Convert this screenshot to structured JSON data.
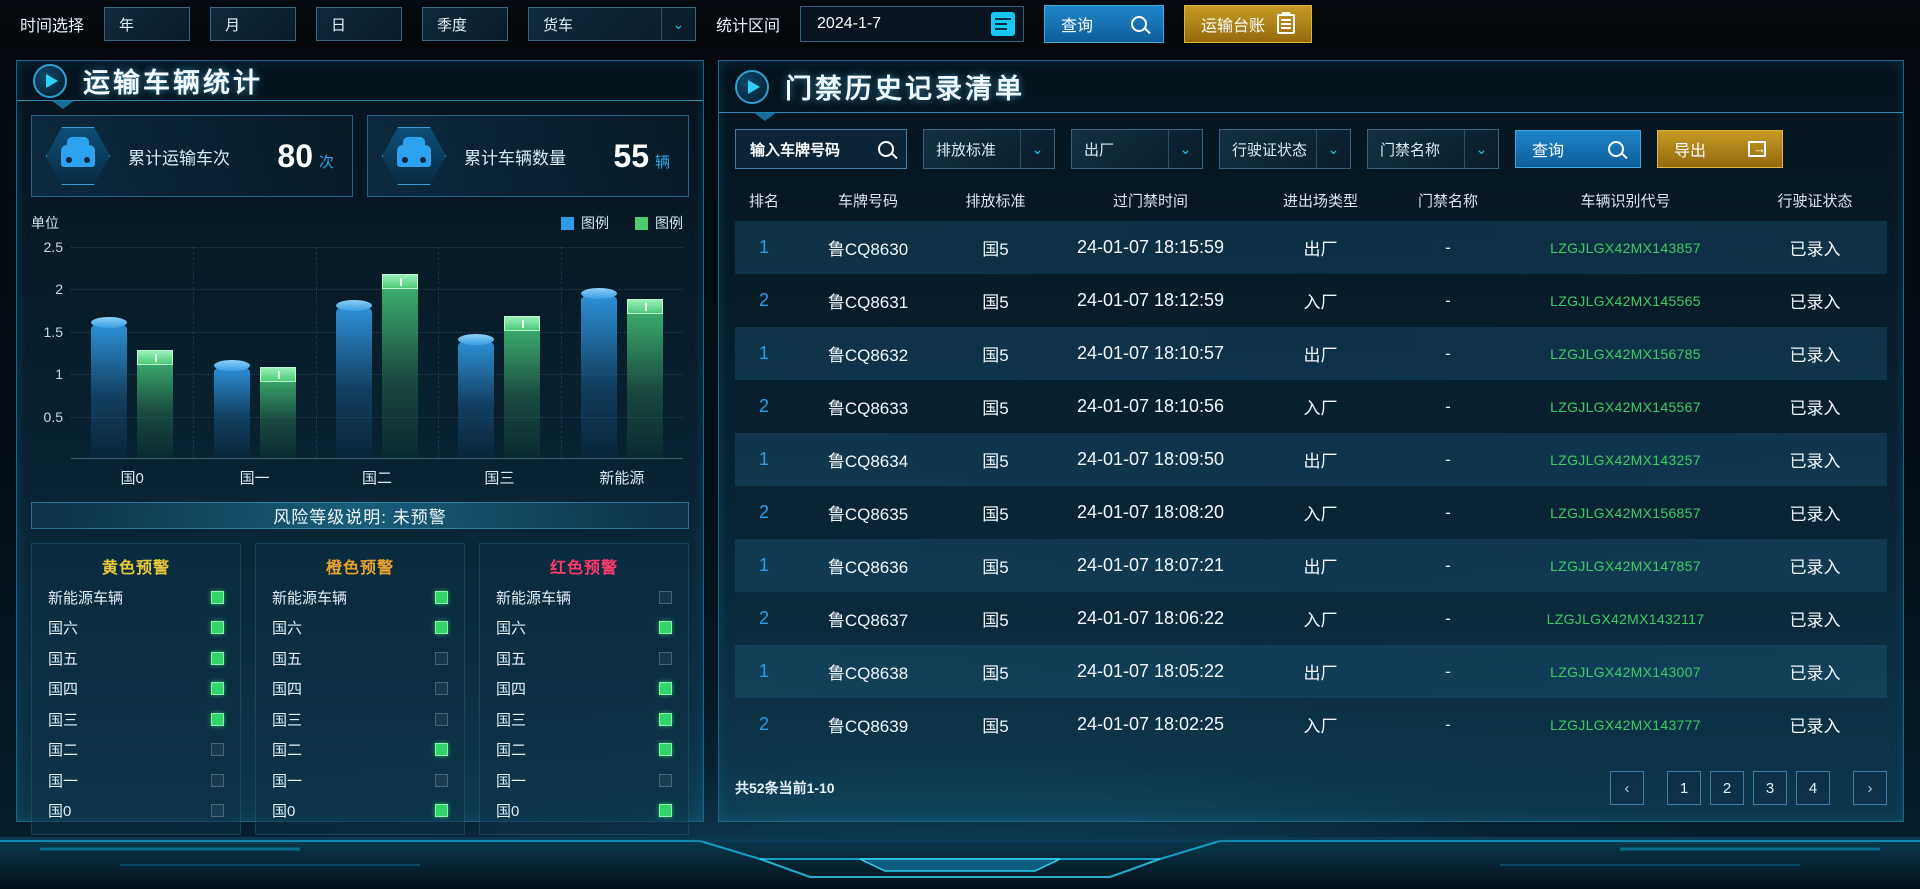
{
  "topbar": {
    "time_label": "时间选择",
    "time_buttons": [
      "年",
      "月",
      "日",
      "季度"
    ],
    "vehicle_select": "货车",
    "range_label": "统计区间",
    "date_value": "2024-1-7",
    "query_label": "查询",
    "ledger_label": "运输台账"
  },
  "left_panel": {
    "title": "运输车辆统计",
    "stats": [
      {
        "label": "累计运输车次",
        "value": "80",
        "unit": "次"
      },
      {
        "label": "累计车辆数量",
        "value": "55",
        "unit": "辆"
      }
    ],
    "risk_note": "风险等级说明: 未预警",
    "warning_columns": [
      {
        "title": "黄色预警",
        "color": "#e8c93a",
        "items": [
          {
            "label": "新能源车辆",
            "on": true
          },
          {
            "label": "国六",
            "on": true
          },
          {
            "label": "国五",
            "on": true
          },
          {
            "label": "国四",
            "on": true
          },
          {
            "label": "国三",
            "on": true
          },
          {
            "label": "国二",
            "on": false
          },
          {
            "label": "国一",
            "on": false
          },
          {
            "label": "国0",
            "on": false
          }
        ]
      },
      {
        "title": "橙色预警",
        "color": "#e8a32e",
        "items": [
          {
            "label": "新能源车辆",
            "on": true
          },
          {
            "label": "国六",
            "on": true
          },
          {
            "label": "国五",
            "on": false
          },
          {
            "label": "国四",
            "on": false
          },
          {
            "label": "国三",
            "on": false
          },
          {
            "label": "国二",
            "on": true
          },
          {
            "label": "国一",
            "on": false
          },
          {
            "label": "国0",
            "on": true
          }
        ]
      },
      {
        "title": "红色预警",
        "color": "#ff3b6e",
        "items": [
          {
            "label": "新能源车辆",
            "on": false
          },
          {
            "label": "国六",
            "on": true
          },
          {
            "label": "国五",
            "on": false
          },
          {
            "label": "国四",
            "on": true
          },
          {
            "label": "国三",
            "on": true
          },
          {
            "label": "国二",
            "on": true
          },
          {
            "label": "国一",
            "on": false
          },
          {
            "label": "国0",
            "on": true
          }
        ]
      }
    ]
  },
  "chart_data": {
    "type": "bar",
    "title": "",
    "ylabel": "单位",
    "categories": [
      "国0",
      "国一",
      "国二",
      "国三",
      "新能源"
    ],
    "series": [
      {
        "name": "图例",
        "color": "#2e9be6",
        "values": [
          1.6,
          1.1,
          1.8,
          1.4,
          1.95
        ]
      },
      {
        "name": "图例",
        "color": "#4ecb71",
        "values": [
          1.2,
          1.0,
          2.1,
          1.6,
          1.8
        ]
      }
    ],
    "ylim": [
      0,
      2.5
    ],
    "yticks": [
      0.5,
      1,
      1.5,
      2,
      2.5
    ],
    "grid": true,
    "legend_position": "top-right"
  },
  "right_panel": {
    "title": "门禁历史记录清单",
    "filters": {
      "plate_placeholder": "输入车牌号码",
      "selects": [
        "排放标准",
        "出厂",
        "行驶证状态",
        "门禁名称"
      ],
      "query_label": "查询",
      "export_label": "导出"
    },
    "table": {
      "headers": [
        "排名",
        "车牌号码",
        "排放标准",
        "过门禁时间",
        "进出场类型",
        "门禁名称",
        "车辆识别代号",
        "行驶证状态"
      ],
      "rows": [
        [
          "1",
          "鲁CQ8630",
          "国5",
          "24-01-07 18:15:59",
          "出厂",
          "-",
          "LZGJLGX42MX143857",
          "已录入"
        ],
        [
          "2",
          "鲁CQ8631",
          "国5",
          "24-01-07 18:12:59",
          "入厂",
          "-",
          "LZGJLGX42MX145565",
          "已录入"
        ],
        [
          "1",
          "鲁CQ8632",
          "国5",
          "24-01-07 18:10:57",
          "出厂",
          "-",
          "LZGJLGX42MX156785",
          "已录入"
        ],
        [
          "2",
          "鲁CQ8633",
          "国5",
          "24-01-07 18:10:56",
          "入厂",
          "-",
          "LZGJLGX42MX145567",
          "已录入"
        ],
        [
          "1",
          "鲁CQ8634",
          "国5",
          "24-01-07 18:09:50",
          "出厂",
          "-",
          "LZGJLGX42MX143257",
          "已录入"
        ],
        [
          "2",
          "鲁CQ8635",
          "国5",
          "24-01-07 18:08:20",
          "入厂",
          "-",
          "LZGJLGX42MX156857",
          "已录入"
        ],
        [
          "1",
          "鲁CQ8636",
          "国5",
          "24-01-07 18:07:21",
          "出厂",
          "-",
          "LZGJLGX42MX147857",
          "已录入"
        ],
        [
          "2",
          "鲁CQ8637",
          "国5",
          "24-01-07 18:06:22",
          "入厂",
          "-",
          "LZGJLGX42MX1432117",
          "已录入"
        ],
        [
          "1",
          "鲁CQ8638",
          "国5",
          "24-01-07 18:05:22",
          "出厂",
          "-",
          "LZGJLGX42MX143007",
          "已录入"
        ],
        [
          "2",
          "鲁CQ8639",
          "国5",
          "24-01-07 18:02:25",
          "入厂",
          "-",
          "LZGJLGX42MX143777",
          "已录入"
        ]
      ]
    },
    "pagination": {
      "summary": "共52条当前1-10",
      "prev": "‹",
      "next": "›",
      "pages": [
        "1",
        "2",
        "3",
        "4"
      ]
    }
  },
  "colors": {
    "accent_blue": "#1e84c8",
    "accent_gold": "#c59a24",
    "vin_green": "#3ecb63",
    "rank_blue": "#2d9ce8",
    "indicator_green": "#33d56a"
  }
}
